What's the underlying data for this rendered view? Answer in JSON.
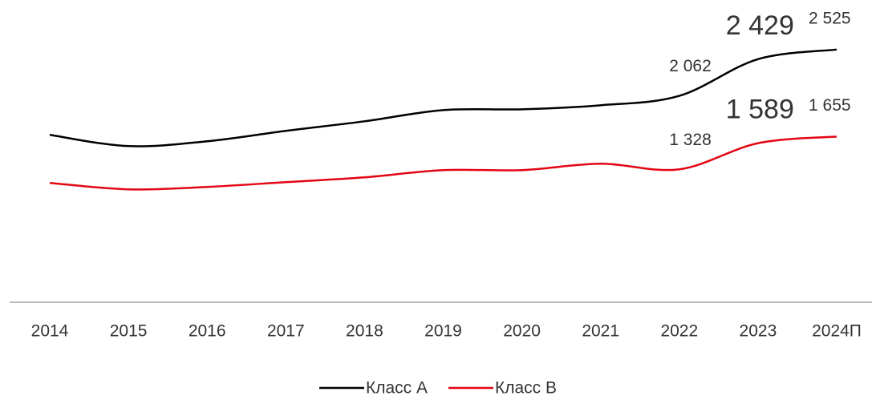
{
  "chart_data": {
    "type": "line",
    "categories": [
      "2014",
      "2015",
      "2016",
      "2017",
      "2018",
      "2019",
      "2020",
      "2021",
      "2022",
      "2023",
      "2024П"
    ],
    "series": [
      {
        "name": "Класс А",
        "color": "#000000",
        "values": [
          1672,
          1560,
          1608,
          1712,
          1808,
          1920,
          1928,
          1968,
          2062,
          2429,
          2525
        ],
        "value_labels": [
          null,
          null,
          null,
          null,
          null,
          null,
          null,
          null,
          "2 062",
          "2 429",
          "2 525"
        ]
      },
      {
        "name": "Класс В",
        "color": "#e30613",
        "values": [
          1192,
          1128,
          1152,
          1200,
          1248,
          1320,
          1320,
          1384,
          1328,
          1589,
          1655
        ],
        "value_labels": [
          null,
          null,
          null,
          null,
          null,
          null,
          null,
          null,
          "1 328",
          "1 589",
          "1 655"
        ]
      }
    ],
    "ylim": [
      0,
      2900
    ],
    "grid": false,
    "legend": "bottom"
  }
}
